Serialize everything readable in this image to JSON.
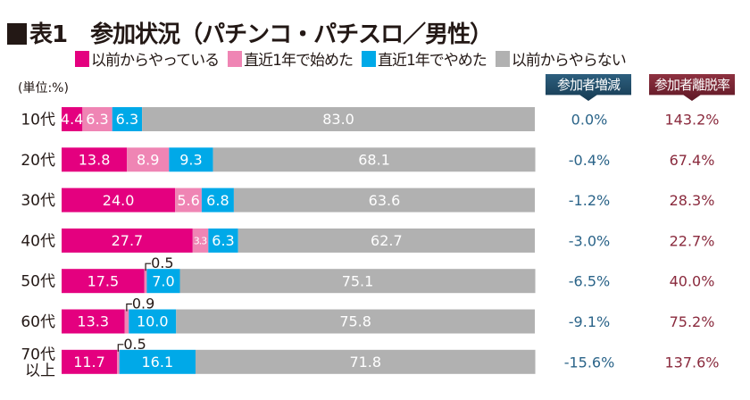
{
  "title": {
    "label": "表1",
    "text": "参加状況（パチンコ・パチスロ／男性）"
  },
  "unit": "(単位:%)",
  "columns": {
    "change": "参加者増減",
    "churn": "参加者離脱率"
  },
  "colors": {
    "continuing": "#e4007f",
    "started": "#ef85b4",
    "quit": "#00a9e8",
    "never": "#b1b1b1",
    "change_text": "#2b6489",
    "churn_text": "#8a2a3d"
  },
  "chart_data": {
    "type": "bar",
    "stacked": true,
    "orientation": "horizontal",
    "xlim": [
      0,
      100
    ],
    "categories": [
      "10代",
      "20代",
      "30代",
      "40代",
      "50代",
      "60代",
      "70代\n以上"
    ],
    "series": [
      {
        "name": "以前からやっている",
        "values": [
          4.4,
          13.8,
          24.0,
          27.7,
          17.5,
          13.3,
          11.7
        ]
      },
      {
        "name": "直近1年で始めた",
        "values": [
          6.3,
          8.9,
          5.6,
          3.3,
          0.5,
          0.9,
          0.5
        ]
      },
      {
        "name": "直近1年でやめた",
        "values": [
          6.3,
          9.3,
          6.8,
          6.3,
          7.0,
          10.0,
          16.1
        ]
      },
      {
        "name": "以前からやらない",
        "values": [
          83.0,
          68.1,
          63.6,
          62.7,
          75.1,
          75.8,
          71.8
        ]
      }
    ],
    "change": [
      "0.0%",
      "-0.4%",
      "-1.2%",
      "-3.0%",
      "-6.5%",
      "-9.1%",
      "-15.6%"
    ],
    "churn": [
      "143.2%",
      "67.4%",
      "28.3%",
      "22.7%",
      "40.0%",
      "75.2%",
      "137.6%"
    ],
    "legend": "top"
  }
}
